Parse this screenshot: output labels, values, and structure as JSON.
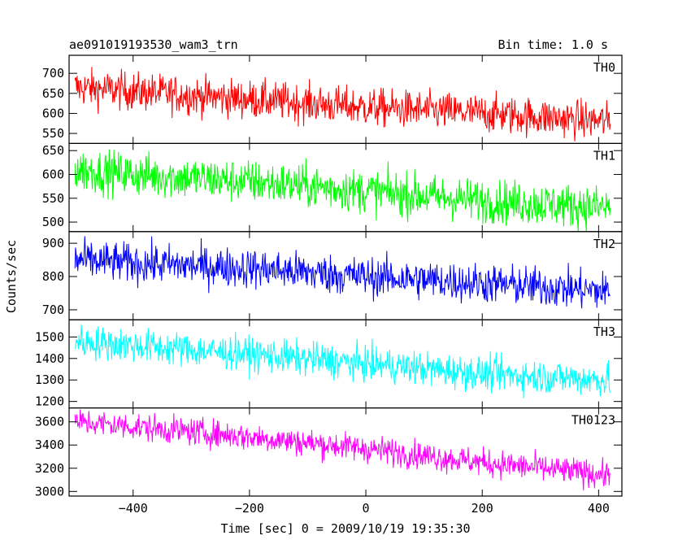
{
  "header": {
    "title": "ae091019193530_wam3_trn",
    "bin_time": "Bin time: 1.0 s"
  },
  "chart_data": {
    "type": "line",
    "title": "ae091019193530_wam3_trn",
    "subtitle": "Bin time: 1.0 s",
    "xlabel": "Time [sec] 0 = 2009/10/19 19:35:30",
    "ylabel": "Counts/sec",
    "xlim": [
      -510,
      440
    ],
    "x_range": [
      -500,
      420
    ],
    "x_ticks": [
      -400,
      -200,
      0,
      200,
      400
    ],
    "x_tick_labels": [
      "−400",
      "−200",
      "0",
      "200",
      "400"
    ],
    "panels": [
      {
        "name": "TH0",
        "color": "#ff0000",
        "ylim": [
          525,
          745
        ],
        "y_ticks": [
          550,
          600,
          650,
          700
        ],
        "trend": [
          [
            -500,
            665
          ],
          [
            -400,
            655
          ],
          [
            -200,
            635
          ],
          [
            0,
            615
          ],
          [
            200,
            600
          ],
          [
            420,
            580
          ]
        ],
        "noise_sd": 24
      },
      {
        "name": "TH1",
        "color": "#00ff00",
        "ylim": [
          480,
          665
        ],
        "y_ticks": [
          500,
          550,
          600,
          650
        ],
        "trend": [
          [
            -500,
            610
          ],
          [
            -400,
            600
          ],
          [
            -200,
            585
          ],
          [
            0,
            565
          ],
          [
            200,
            545
          ],
          [
            420,
            530
          ]
        ],
        "noise_sd": 23
      },
      {
        "name": "TH2",
        "color": "#0000ff",
        "ylim": [
          670,
          935
        ],
        "y_ticks": [
          700,
          800,
          900
        ],
        "trend": [
          [
            -500,
            850
          ],
          [
            -400,
            840
          ],
          [
            -200,
            825
          ],
          [
            0,
            800
          ],
          [
            200,
            780
          ],
          [
            420,
            755
          ]
        ],
        "noise_sd": 30
      },
      {
        "name": "TH3",
        "color": "#00ffff",
        "ylim": [
          1170,
          1580
        ],
        "y_ticks": [
          1200,
          1300,
          1400,
          1500
        ],
        "trend": [
          [
            -500,
            1480
          ],
          [
            -400,
            1460
          ],
          [
            -200,
            1420
          ],
          [
            0,
            1375
          ],
          [
            200,
            1330
          ],
          [
            420,
            1300
          ]
        ],
        "noise_sd": 40
      },
      {
        "name": "TH0123",
        "color": "#ff00ff",
        "ylim": [
          2960,
          3720
        ],
        "y_ticks": [
          3000,
          3200,
          3400,
          3600
        ],
        "trend": [
          [
            -500,
            3600
          ],
          [
            -400,
            3560
          ],
          [
            -200,
            3470
          ],
          [
            0,
            3370
          ],
          [
            200,
            3250
          ],
          [
            420,
            3140
          ]
        ],
        "noise_sd": 60
      }
    ],
    "grid": false,
    "legend": "panel labels top-right"
  }
}
